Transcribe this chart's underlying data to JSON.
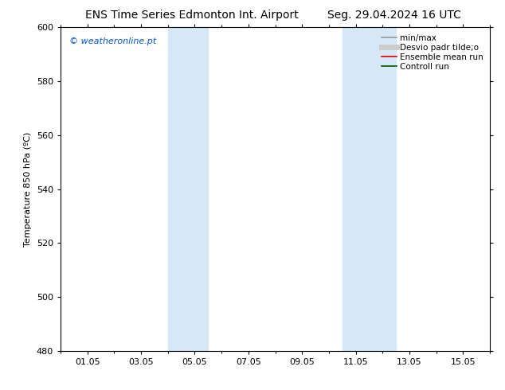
{
  "title_left": "ENS Time Series Edmonton Int. Airport",
  "title_right": "Seg. 29.04.2024 16 UTC",
  "ylabel": "Temperature 850 hPa (ºC)",
  "ylim": [
    480,
    600
  ],
  "yticks": [
    480,
    500,
    520,
    540,
    560,
    580,
    600
  ],
  "xtick_labels": [
    "01.05",
    "03.05",
    "05.05",
    "07.05",
    "09.05",
    "11.05",
    "13.05",
    "15.05"
  ],
  "xtick_positions": [
    1,
    3,
    5,
    7,
    9,
    11,
    13,
    15
  ],
  "xlim": [
    0,
    16
  ],
  "shaded_bands": [
    {
      "x_start": 4.0,
      "x_end": 5.5
    },
    {
      "x_start": 10.5,
      "x_end": 12.5
    }
  ],
  "shaded_color": "#d6e8f5",
  "background_color": "#ffffff",
  "watermark_text": "© weatheronline.pt",
  "watermark_color": "#0055cc",
  "legend_entries": [
    {
      "label": "min/max",
      "color": "#999999",
      "lw": 1.2,
      "style": "solid"
    },
    {
      "label": "Desvio padr tilde;o",
      "color": "#cccccc",
      "lw": 5,
      "style": "solid"
    },
    {
      "label": "Ensemble mean run",
      "color": "#dd0000",
      "lw": 1.2,
      "style": "solid"
    },
    {
      "label": "Controll run",
      "color": "#005500",
      "lw": 1.2,
      "style": "solid"
    }
  ],
  "title_fontsize": 10,
  "tick_fontsize": 8,
  "label_fontsize": 8,
  "watermark_fontsize": 8,
  "legend_fontsize": 7.5
}
